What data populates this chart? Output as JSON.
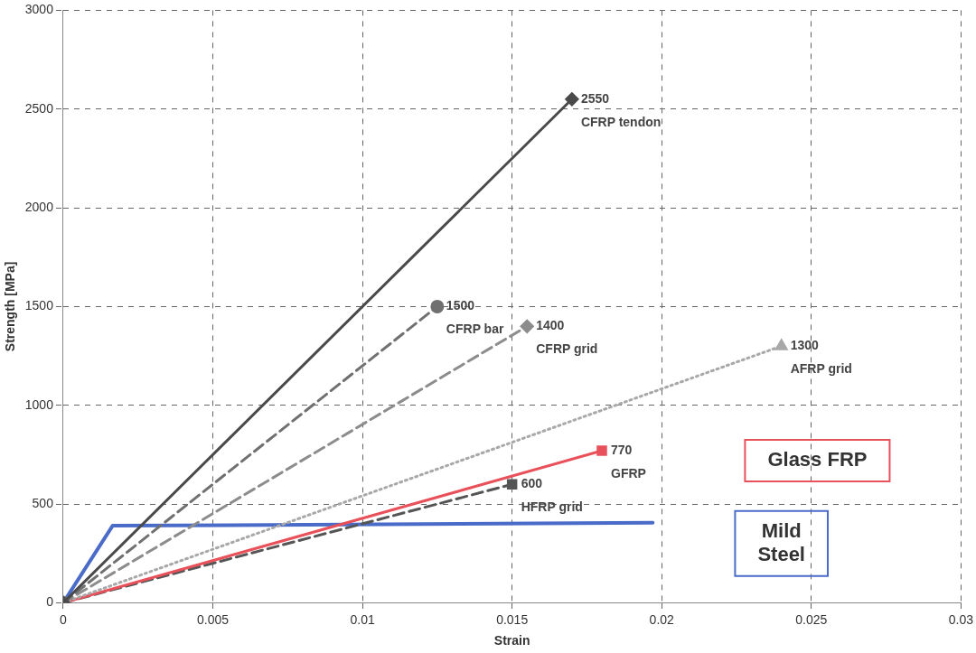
{
  "chart_data": {
    "type": "line",
    "xlabel": "Strain",
    "ylabel": "Strength [MPa]",
    "xlim": [
      0,
      0.03
    ],
    "xticks": [
      0,
      0.005,
      0.01,
      0.015,
      0.02,
      0.025,
      0.03
    ],
    "ylim": [
      0,
      3000
    ],
    "yticks": [
      0,
      500,
      1000,
      1500,
      2000,
      2500,
      3000
    ],
    "grid": true,
    "legend": false,
    "series": [
      {
        "name": "CFRP tendon",
        "color": "#4a4a4a",
        "x": [
          0,
          0.017
        ],
        "values": [
          0,
          2550
        ],
        "value_labels": [
          null,
          "2550"
        ],
        "marker": "diamond",
        "line_style": "solid"
      },
      {
        "name": "CFRP bar",
        "color": "#707070",
        "x": [
          0,
          0.0125
        ],
        "values": [
          0,
          1500
        ],
        "value_labels": [
          null,
          "1500"
        ],
        "marker": "circle",
        "line_style": "dashed"
      },
      {
        "name": "CFRP grid",
        "color": "#8c8c8c",
        "x": [
          0,
          0.0155
        ],
        "values": [
          0,
          1400
        ],
        "value_labels": [
          null,
          "1400"
        ],
        "marker": "diamond",
        "line_style": "dashed"
      },
      {
        "name": "AFRP grid",
        "color": "#a8a8a8",
        "x": [
          0,
          0.024
        ],
        "values": [
          0,
          1300
        ],
        "value_labels": [
          null,
          "1300"
        ],
        "marker": "triangle",
        "line_style": "dotted"
      },
      {
        "name": "GFRP",
        "color": "#e8505a",
        "x": [
          0,
          0.018
        ],
        "values": [
          0,
          770
        ],
        "value_labels": [
          null,
          "770"
        ],
        "marker": "square",
        "line_style": "solid"
      },
      {
        "name": "HFRP grid",
        "color": "#555555",
        "x": [
          0,
          0.015
        ],
        "values": [
          0,
          600
        ],
        "value_labels": [
          null,
          "600"
        ],
        "marker": "square",
        "line_style": "dashed"
      },
      {
        "color": "#4a6cc8",
        "x": [
          0,
          0.00165,
          0.0197
        ],
        "values": [
          0,
          390,
          405
        ],
        "marker": "none",
        "line_style": "solid"
      }
    ],
    "annotations": [
      "Glass FRP",
      "Mild\nSteel"
    ]
  }
}
